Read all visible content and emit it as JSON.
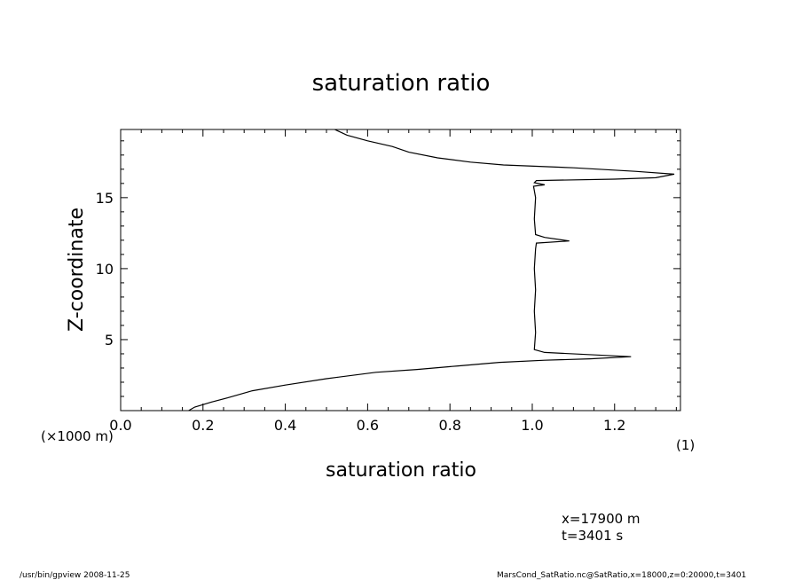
{
  "chart_data": {
    "type": "line",
    "title": "saturation ratio",
    "xlabel": "saturation ratio",
    "ylabel": "Z-coordinate",
    "x_unit_label": "(1)",
    "y_unit_label": "(×1000 m)",
    "xlim": [
      0.0,
      1.36
    ],
    "ylim": [
      0,
      19.8
    ],
    "x_ticks": [
      "0.0",
      "0.2",
      "0.4",
      "0.6",
      "0.8",
      "1.0",
      "1.2"
    ],
    "y_ticks": [
      "5",
      "10",
      "15"
    ],
    "grid": false,
    "series": [
      {
        "points": [
          [
            0.165,
            0.0
          ],
          [
            0.18,
            0.25
          ],
          [
            0.22,
            0.6
          ],
          [
            0.26,
            0.9
          ],
          [
            0.32,
            1.4
          ],
          [
            0.4,
            1.8
          ],
          [
            0.5,
            2.25
          ],
          [
            0.62,
            2.7
          ],
          [
            0.72,
            2.9
          ],
          [
            0.82,
            3.15
          ],
          [
            0.92,
            3.4
          ],
          [
            1.03,
            3.55
          ],
          [
            1.14,
            3.65
          ],
          [
            1.24,
            3.8
          ],
          [
            1.03,
            4.1
          ],
          [
            1.005,
            4.3
          ],
          [
            1.008,
            5.5
          ],
          [
            1.005,
            7.0
          ],
          [
            1.008,
            8.5
          ],
          [
            1.005,
            10.0
          ],
          [
            1.008,
            11.4
          ],
          [
            1.01,
            11.8
          ],
          [
            1.09,
            11.95
          ],
          [
            1.03,
            12.2
          ],
          [
            1.008,
            12.4
          ],
          [
            1.005,
            13.5
          ],
          [
            1.008,
            15.0
          ],
          [
            1.003,
            15.8
          ],
          [
            1.03,
            15.9
          ],
          [
            1.005,
            16.05
          ],
          [
            1.01,
            16.2
          ],
          [
            1.2,
            16.3
          ],
          [
            1.3,
            16.4
          ],
          [
            1.345,
            16.65
          ],
          [
            1.25,
            16.85
          ],
          [
            1.1,
            17.1
          ],
          [
            0.93,
            17.3
          ],
          [
            0.85,
            17.5
          ],
          [
            0.77,
            17.8
          ],
          [
            0.7,
            18.2
          ],
          [
            0.66,
            18.6
          ],
          [
            0.6,
            19.0
          ],
          [
            0.55,
            19.4
          ],
          [
            0.52,
            19.8
          ]
        ]
      }
    ]
  },
  "annotations": {
    "position": "x=17900  m",
    "time": "t=3401  s"
  },
  "footer": {
    "left": "/usr/bin/gpview   2008-11-25",
    "right": "MarsCond_SatRatio.nc@SatRatio,x=18000,z=0:20000,t=3401"
  }
}
